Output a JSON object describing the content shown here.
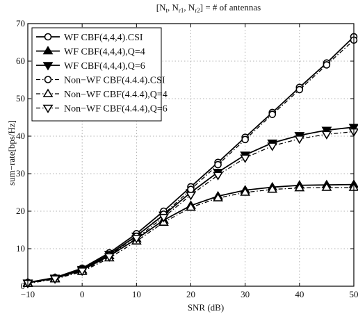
{
  "chart_data": {
    "type": "line",
    "title": "[N_t, N_r1, N_r2] = # of antennas",
    "title_parts": {
      "open": "[N",
      "sub1": "t",
      "sep1": ", N",
      "sub2": "r1",
      "sep2": ", N",
      "sub3": "r2",
      "close": "] = # of antennas"
    },
    "xlabel": "SNR (dB)",
    "ylabel": "sum−rate[bps/Hz]",
    "xlim": [
      -10,
      50
    ],
    "ylim": [
      0,
      70
    ],
    "xticks": [
      -10,
      0,
      10,
      20,
      30,
      40,
      50
    ],
    "yticks": [
      0,
      10,
      20,
      30,
      40,
      50,
      60,
      70
    ],
    "xtick_labels": [
      "−10",
      "0",
      "10",
      "20",
      "30",
      "40",
      "50"
    ],
    "ytick_labels": [
      "0",
      "10",
      "20",
      "30",
      "40",
      "50",
      "60",
      "70"
    ],
    "grid": true,
    "legend_position": "top-left",
    "x": [
      -10,
      -5,
      0,
      5,
      10,
      15,
      20,
      25,
      30,
      35,
      40,
      45,
      50
    ],
    "series": [
      {
        "name": "WF CBF(4,4,4).CSI",
        "marker": "circle",
        "linestyle": "solid",
        "values": [
          1.0,
          2.3,
          4.8,
          8.9,
          14.0,
          20.0,
          26.5,
          33.0,
          39.7,
          46.3,
          53.0,
          59.5,
          66.5
        ]
      },
      {
        "name": "WF CBF(4,4,4),Q=4",
        "marker": "triangle-up",
        "linestyle": "solid",
        "values": [
          0.9,
          2.1,
          4.3,
          8.1,
          12.6,
          17.6,
          21.5,
          24.0,
          25.6,
          26.4,
          26.9,
          27.0,
          27.1
        ]
      },
      {
        "name": "WF CBF(4,4,4),Q=6",
        "marker": "triangle-down",
        "linestyle": "solid",
        "values": [
          0.9,
          2.2,
          4.5,
          8.5,
          13.4,
          19.0,
          25.0,
          30.4,
          35.0,
          38.2,
          40.2,
          41.6,
          42.4
        ]
      },
      {
        "name": "Non−WF CBF(4.4.4).CSI",
        "marker": "circle",
        "linestyle": "dashdot",
        "values": [
          0.8,
          2.0,
          4.3,
          8.2,
          13.3,
          19.2,
          25.8,
          32.4,
          39.1,
          45.8,
          52.4,
          59.0,
          65.6
        ]
      },
      {
        "name": "Non−WF CBF(4.4.4),Q=4",
        "marker": "triangle-up-open",
        "linestyle": "dashdot",
        "values": [
          0.7,
          1.9,
          3.9,
          7.5,
          12.0,
          17.0,
          21.0,
          23.5,
          25.0,
          25.8,
          26.2,
          26.3,
          26.3
        ]
      },
      {
        "name": "Non−WF CBF(4.4.4),Q=6",
        "marker": "triangle-down-open",
        "linestyle": "dashdot",
        "values": [
          0.8,
          2.0,
          4.1,
          7.9,
          12.8,
          18.4,
          24.3,
          29.6,
          34.2,
          37.4,
          39.3,
          40.5,
          41.2
        ]
      }
    ]
  }
}
